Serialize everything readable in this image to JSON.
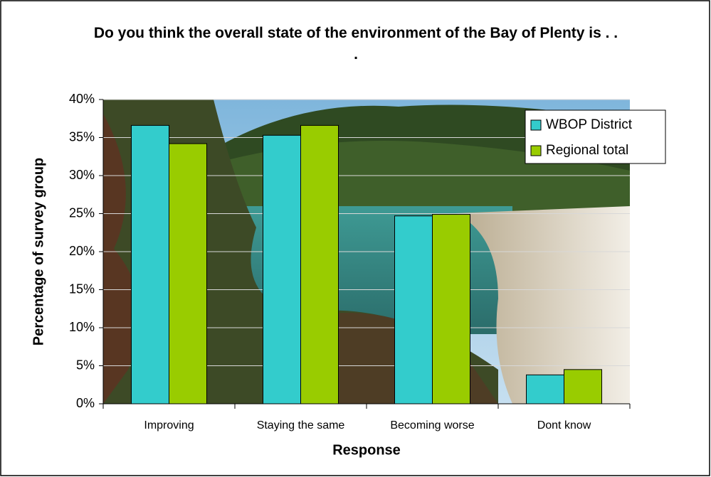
{
  "chart_data": {
    "type": "bar",
    "title": "Do you think the overall state of the environment of the Bay of Plenty is . . .",
    "x_label": "Response",
    "y_label": "Percentage of survey group",
    "categories": [
      "Improving",
      "Staying the same",
      "Becoming worse",
      "Dont know"
    ],
    "series": [
      {
        "name": "WBOP District",
        "color": "#33cccc",
        "values": [
          36.6,
          35.3,
          24.7,
          3.8
        ]
      },
      {
        "name": "Regional total",
        "color": "#99cc00",
        "values": [
          34.2,
          36.6,
          24.9,
          4.5
        ]
      }
    ],
    "ylim": [
      0,
      40
    ],
    "yticks": [
      {
        "value": 0,
        "label": "0%"
      },
      {
        "value": 5,
        "label": "5%"
      },
      {
        "value": 10,
        "label": "10%"
      },
      {
        "value": 15,
        "label": "15%"
      },
      {
        "value": 20,
        "label": "20%"
      },
      {
        "value": 25,
        "label": "25%"
      },
      {
        "value": 30,
        "label": "30%"
      },
      {
        "value": 35,
        "label": "35%"
      },
      {
        "value": 40,
        "label": "40%"
      }
    ],
    "grid": true,
    "legend": "top-right"
  }
}
